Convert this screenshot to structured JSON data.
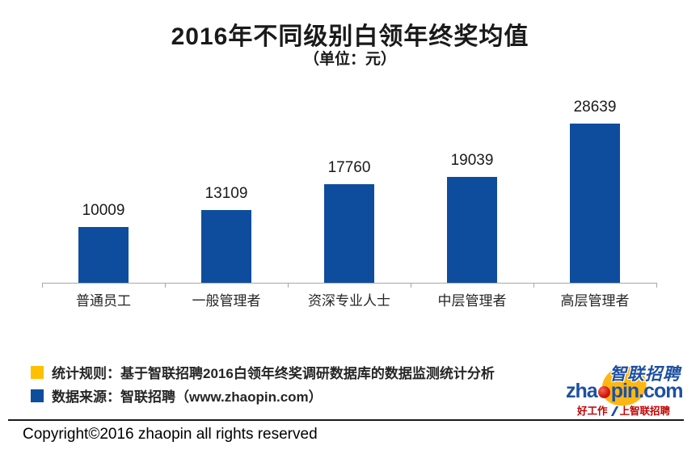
{
  "title": "2016年不同级别白领年终奖均值",
  "subtitle": "（单位：元）",
  "chart_data": {
    "type": "bar",
    "title": "2016年不同级别白领年终奖均值",
    "unit_label": "（单位：元）",
    "categories": [
      "普通员工",
      "一般管理者",
      "资深专业人士",
      "中层管理者",
      "高层管理者"
    ],
    "values": [
      10009,
      13109,
      17760,
      19039,
      28639
    ],
    "xlabel": "",
    "ylabel": "",
    "ylim": [
      0,
      28639
    ],
    "grid": false,
    "legend_position": "none",
    "data_labels": true,
    "bar_color": "#0E4D9D",
    "axis_color": "#A6A6A6"
  },
  "legend": {
    "items": [
      {
        "label": "统计规则：基于智联招聘2016白领年终奖调研数据库的数据监测统计分析",
        "color": "#FFC000"
      },
      {
        "label": "数据来源：智联招聘（www.zhaopin.com）",
        "color": "#0E4D9D"
      }
    ]
  },
  "logo": {
    "chinese_name": "智联招聘",
    "domain_prefix": "zha",
    "domain_suffix": "pin.com",
    "red_dot_icon": "red-dot-o-icon",
    "tagline_left": "好工作",
    "tagline_right": "上智联招聘",
    "brand_blue": "#1D50A2",
    "brand_yellow": "#FDB714",
    "brand_red": "#C00000"
  },
  "copyright": "Copyright©2016 zhaopin all rights reserved"
}
